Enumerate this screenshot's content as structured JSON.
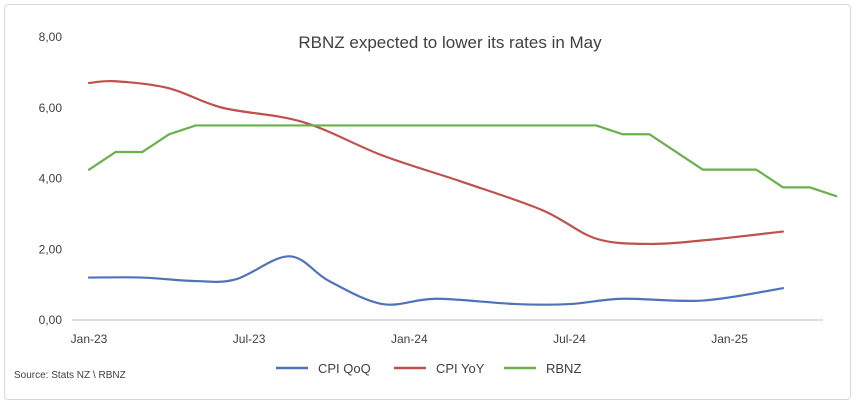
{
  "chart_data": {
    "type": "line",
    "title": "RBNZ expected to lower its rates in May",
    "source": "Source: Stats NZ \\ RBNZ",
    "xlabel": "",
    "ylabel": "",
    "ylim": [
      0,
      8
    ],
    "y_ticks": [
      "0,00",
      "2,00",
      "4,00",
      "6,00",
      "8,00"
    ],
    "y_tick_values": [
      0,
      2,
      4,
      6,
      8
    ],
    "x_tick_labels": [
      "Jan-23",
      "Jul-23",
      "Jan-24",
      "Jul-24",
      "Jan-25"
    ],
    "x_tick_months": [
      0,
      6,
      12,
      18,
      24
    ],
    "x_range_months": [
      0,
      27.5
    ],
    "grid": false,
    "legend_position": "bottom",
    "series": [
      {
        "name": "CPI QoQ",
        "color": "#4f73b8",
        "smooth": true,
        "points": [
          [
            0,
            1.2
          ],
          [
            2,
            1.2
          ],
          [
            4,
            1.1
          ],
          [
            5.5,
            1.15
          ],
          [
            7.5,
            1.8
          ],
          [
            9,
            1.1
          ],
          [
            11,
            0.45
          ],
          [
            13,
            0.6
          ],
          [
            16,
            0.45
          ],
          [
            18,
            0.45
          ],
          [
            20,
            0.6
          ],
          [
            23,
            0.55
          ],
          [
            26,
            0.9
          ]
        ]
      },
      {
        "name": "CPI YoY",
        "color": "#c0504d",
        "smooth": true,
        "points": [
          [
            0,
            6.7
          ],
          [
            1,
            6.75
          ],
          [
            3,
            6.55
          ],
          [
            5,
            6.0
          ],
          [
            8,
            5.6
          ],
          [
            11,
            4.65
          ],
          [
            14,
            3.9
          ],
          [
            17,
            3.1
          ],
          [
            19,
            2.3
          ],
          [
            21,
            2.15
          ],
          [
            23,
            2.25
          ],
          [
            26,
            2.5
          ]
        ]
      },
      {
        "name": "RBNZ",
        "color": "#6ab04c",
        "smooth": false,
        "points": [
          [
            0,
            4.25
          ],
          [
            1,
            4.75
          ],
          [
            2,
            4.75
          ],
          [
            3,
            5.25
          ],
          [
            4,
            5.5
          ],
          [
            17,
            5.5
          ],
          [
            19,
            5.5
          ],
          [
            20,
            5.25
          ],
          [
            21,
            5.25
          ],
          [
            23,
            4.25
          ],
          [
            25,
            4.25
          ],
          [
            26,
            3.75
          ],
          [
            27,
            3.75
          ],
          [
            28,
            3.5
          ]
        ]
      }
    ]
  }
}
